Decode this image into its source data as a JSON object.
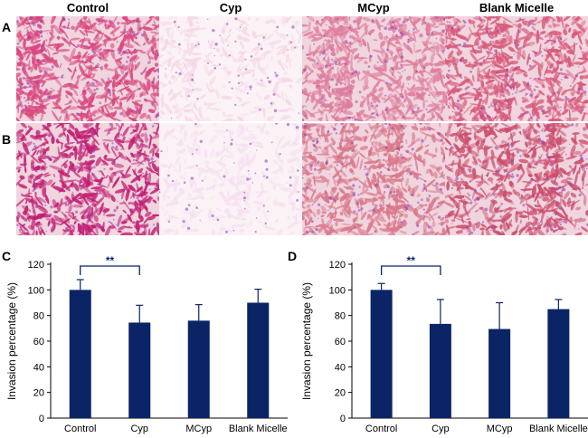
{
  "figure": {
    "columns": [
      "Control",
      "Cyp",
      "MCyp",
      "Blank Micelle"
    ],
    "panel_labels": {
      "A": "A",
      "B": "B",
      "C": "C",
      "D": "D"
    },
    "micrograph_rows": [
      {
        "row": "A",
        "images": [
          "Control",
          "Cyp",
          "MCyp",
          "Blank Micelle"
        ],
        "tones": [
          "#d9477e",
          "#f5d8e6",
          "#de7d9c",
          "#d85a7a"
        ]
      },
      {
        "row": "B",
        "images": [
          "Control",
          "Cyp",
          "MCyp",
          "Blank Micelle"
        ],
        "tones": [
          "#c21f72",
          "#f6e0f0",
          "#d9788a",
          "#cc4f6d"
        ]
      }
    ]
  },
  "chart_data": [
    {
      "panel": "C",
      "type": "bar",
      "categories": [
        "Control",
        "Cyp",
        "MCyp",
        "Blank Micelle"
      ],
      "values": [
        100,
        74.5,
        76,
        90
      ],
      "errors": [
        8,
        13.5,
        12.5,
        10.5
      ],
      "ylabel": "Invasion percentage (%)",
      "ylim": [
        0,
        120
      ],
      "yticks": [
        0,
        20,
        40,
        60,
        80,
        100,
        120
      ],
      "bar_color": "#0a2466",
      "significance": {
        "from": "Control",
        "to": "Cyp",
        "label": "**"
      }
    },
    {
      "panel": "D",
      "type": "bar",
      "categories": [
        "Control",
        "Cyp",
        "MCyp",
        "Blank Micelle"
      ],
      "values": [
        100,
        73.5,
        69.5,
        85
      ],
      "errors": [
        5,
        19,
        20.5,
        7.5
      ],
      "ylabel": "Invasion percentage (%)",
      "ylim": [
        0,
        120
      ],
      "yticks": [
        0,
        20,
        40,
        60,
        80,
        100,
        120
      ],
      "bar_color": "#0a2466",
      "significance": {
        "from": "Control",
        "to": "Cyp",
        "label": "**"
      }
    }
  ]
}
